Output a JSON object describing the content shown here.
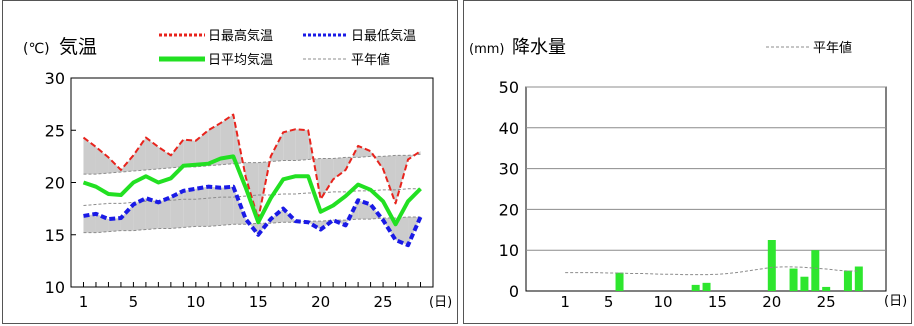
{
  "charts": {
    "temperature": {
      "unit": "(℃)",
      "title": "気温",
      "x_end_label": "(日)",
      "legend": {
        "max": "日最高気温",
        "min": "日最低気温",
        "mean": "日平均気温",
        "normal": "平年値"
      }
    },
    "precipitation": {
      "unit": "(mm)",
      "title": "降水量",
      "x_end_label": "(日)",
      "legend": {
        "normal": "平年値"
      }
    }
  },
  "colors": {
    "max": "#e8231c",
    "min": "#1a1ae6",
    "mean": "#22e022",
    "normal": "#8c8c8c",
    "band": "#cccccc",
    "bar": "#2ee62e"
  },
  "chart_data": [
    {
      "type": "line",
      "title": "気温",
      "ylabel": "(℃)",
      "xlabel": "(日)",
      "x": [
        1,
        2,
        3,
        4,
        5,
        6,
        7,
        8,
        9,
        10,
        11,
        12,
        13,
        14,
        15,
        16,
        17,
        18,
        19,
        20,
        21,
        22,
        23,
        24,
        25,
        26,
        27,
        28
      ],
      "xlim": [
        0,
        29
      ],
      "ylim": [
        10,
        30
      ],
      "xticks": [
        1,
        5,
        10,
        15,
        20,
        25
      ],
      "yticks": [
        10,
        15,
        20,
        25,
        30
      ],
      "series": [
        {
          "name": "日最高気温",
          "key": "max",
          "values": [
            24.3,
            23.4,
            22.4,
            21.2,
            22.6,
            24.3,
            23.4,
            22.6,
            24.1,
            24.0,
            25.0,
            25.7,
            26.5,
            20.5,
            16.5,
            22.5,
            24.8,
            25.1,
            25.0,
            18.4,
            20.3,
            21.2,
            23.5,
            23.0,
            21.3,
            18.0,
            22.2,
            23.0
          ]
        },
        {
          "name": "日平均気温",
          "key": "mean",
          "values": [
            20.0,
            19.6,
            18.9,
            18.8,
            20.0,
            20.6,
            20.0,
            20.4,
            21.6,
            21.7,
            21.8,
            22.3,
            22.5,
            19.5,
            16.2,
            18.5,
            20.3,
            20.6,
            20.6,
            17.2,
            17.8,
            18.7,
            19.8,
            19.3,
            18.2,
            16.0,
            18.2,
            19.4
          ]
        },
        {
          "name": "日最低気温",
          "key": "min",
          "values": [
            16.8,
            17.0,
            16.5,
            16.6,
            17.9,
            18.5,
            18.1,
            18.6,
            19.2,
            19.4,
            19.6,
            19.5,
            19.6,
            16.5,
            15.0,
            16.5,
            17.5,
            16.3,
            16.2,
            15.5,
            16.4,
            15.9,
            18.3,
            17.9,
            16.4,
            14.5,
            14.0,
            16.7
          ]
        },
        {
          "name": "平年値",
          "key": "normal_max",
          "values": [
            20.8,
            20.8,
            20.9,
            21.0,
            21.1,
            21.2,
            21.3,
            21.4,
            21.5,
            21.5,
            21.6,
            21.7,
            21.8,
            21.9,
            21.9,
            22.0,
            22.1,
            22.1,
            22.2,
            22.3,
            22.3,
            22.4,
            22.4,
            22.5,
            22.5,
            22.6,
            22.6,
            22.7
          ]
        },
        {
          "name": "平年値",
          "key": "normal_mean",
          "values": [
            17.8,
            17.9,
            18.0,
            18.0,
            18.1,
            18.2,
            18.2,
            18.3,
            18.4,
            18.4,
            18.5,
            18.6,
            18.6,
            18.7,
            18.8,
            18.8,
            18.9,
            18.9,
            19.0,
            19.0,
            19.1,
            19.1,
            19.2,
            19.2,
            19.3,
            19.3,
            19.4,
            19.4
          ]
        },
        {
          "name": "平年値",
          "key": "normal_min",
          "values": [
            15.2,
            15.2,
            15.3,
            15.4,
            15.4,
            15.5,
            15.6,
            15.6,
            15.7,
            15.8,
            15.8,
            15.9,
            16.0,
            16.0,
            16.1,
            16.1,
            16.2,
            16.2,
            16.3,
            16.3,
            16.4,
            16.4,
            16.5,
            16.5,
            16.6,
            16.6,
            16.7,
            16.7
          ]
        }
      ]
    },
    {
      "type": "bar",
      "title": "降水量",
      "ylabel": "(mm)",
      "xlabel": "(日)",
      "x": [
        1,
        2,
        3,
        4,
        5,
        6,
        7,
        8,
        9,
        10,
        11,
        12,
        13,
        14,
        15,
        16,
        17,
        18,
        19,
        20,
        21,
        22,
        23,
        24,
        25,
        26,
        27,
        28
      ],
      "xlim": [
        -2.6,
        30.5
      ],
      "ylim": [
        0,
        50
      ],
      "xticks": [
        1,
        5,
        10,
        15,
        20,
        25
      ],
      "yticks": [
        0,
        10,
        20,
        30,
        40,
        50
      ],
      "grid": true,
      "series": [
        {
          "name": "降水量",
          "key": "rain",
          "values": [
            0,
            0,
            0,
            0,
            0,
            4.5,
            0,
            0,
            0,
            0,
            0,
            0,
            1.5,
            2.0,
            0,
            0,
            0,
            0,
            0,
            12.5,
            0,
            5.5,
            3.5,
            10.0,
            1.0,
            0,
            5.0,
            6.0
          ]
        },
        {
          "name": "平年値",
          "key": "normal",
          "values": [
            4.5,
            4.5,
            4.5,
            4.5,
            4.4,
            4.4,
            4.3,
            4.3,
            4.2,
            4.1,
            4.1,
            4.0,
            4.0,
            4.0,
            4.1,
            4.3,
            4.6,
            5.0,
            5.4,
            5.8,
            5.9,
            5.9,
            5.8,
            5.6,
            5.4,
            5.1,
            4.9,
            4.9
          ]
        }
      ]
    }
  ]
}
